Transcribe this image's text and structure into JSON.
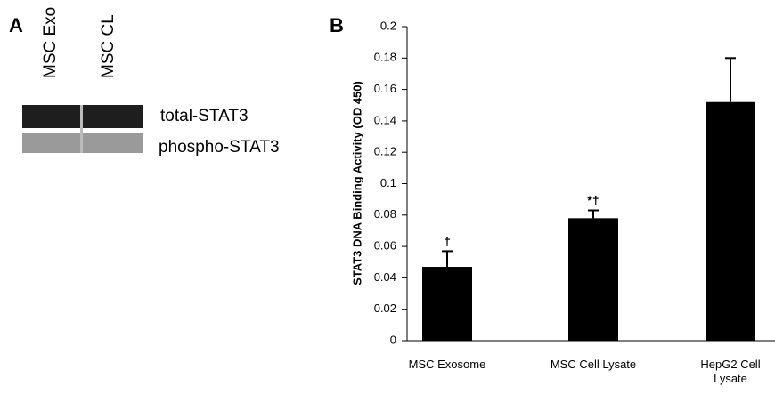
{
  "panel_labels": [
    "A",
    "B"
  ],
  "panel_a": {
    "lanes": [
      "MSC Exo",
      "MSC CL"
    ],
    "bands": [
      "total-STAT3",
      "phospho-STAT3"
    ]
  },
  "chart_data": {
    "type": "bar",
    "ylabel": "STAT3 DNA Binding Activity (OD 450)",
    "categories": [
      "MSC Exosome",
      "MSC Cell Lysate",
      "HepG2  Cell Lysate"
    ],
    "values": [
      0.047,
      0.078,
      0.152
    ],
    "errors": [
      0.01,
      0.005,
      0.028
    ],
    "annotations": [
      "†",
      "*†",
      null
    ],
    "color": "#000000",
    "ylim": [
      0,
      0.2
    ],
    "yticks": [
      0,
      0.02,
      0.04,
      0.06,
      0.08,
      0.1,
      0.12,
      0.14,
      0.16,
      0.18,
      0.2
    ],
    "grid": false
  }
}
